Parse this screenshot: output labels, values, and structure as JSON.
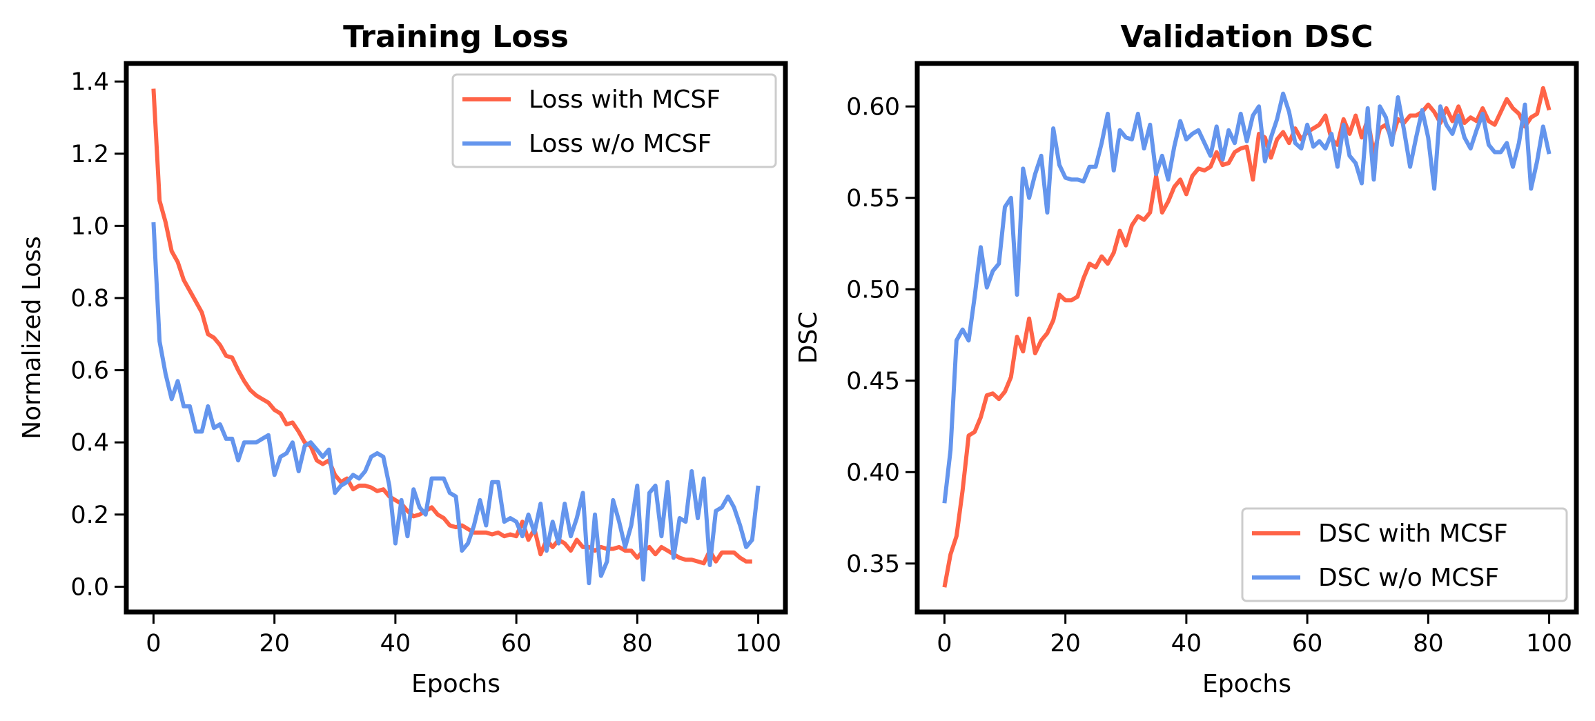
{
  "chart_data": [
    {
      "type": "line",
      "title": "Training Loss",
      "xlabel": "Epochs",
      "ylabel": "Normalized Loss",
      "xlim": [
        -4.5,
        104.5
      ],
      "ylim": [
        -0.07,
        1.45
      ],
      "xticks": [
        0,
        20,
        40,
        60,
        80,
        100
      ],
      "yticks": [
        0.0,
        0.2,
        0.4,
        0.6,
        0.8,
        1.0,
        1.2,
        1.4
      ],
      "xtick_labels": [
        "0",
        "20",
        "40",
        "60",
        "80",
        "100"
      ],
      "ytick_labels": [
        "0.0",
        "0.2",
        "0.4",
        "0.6",
        "0.8",
        "1.0",
        "1.2",
        "1.4"
      ],
      "grid": false,
      "legend_position": "upper right",
      "series": [
        {
          "name": "Loss with MCSF",
          "color": "#FF6347",
          "values": [
            1.38,
            1.07,
            1.01,
            0.93,
            0.9,
            0.85,
            0.82,
            0.79,
            0.76,
            0.7,
            0.69,
            0.67,
            0.64,
            0.635,
            0.6,
            0.57,
            0.545,
            0.53,
            0.52,
            0.51,
            0.49,
            0.48,
            0.45,
            0.455,
            0.43,
            0.4,
            0.39,
            0.35,
            0.34,
            0.35,
            0.31,
            0.29,
            0.3,
            0.27,
            0.28,
            0.28,
            0.275,
            0.265,
            0.27,
            0.25,
            0.24,
            0.23,
            0.21,
            0.195,
            0.2,
            0.21,
            0.22,
            0.2,
            0.19,
            0.17,
            0.165,
            0.17,
            0.16,
            0.15,
            0.15,
            0.15,
            0.145,
            0.15,
            0.14,
            0.145,
            0.14,
            0.18,
            0.13,
            0.16,
            0.09,
            0.13,
            0.11,
            0.13,
            0.12,
            0.1,
            0.13,
            0.11,
            0.11,
            0.1,
            0.11,
            0.105,
            0.105,
            0.11,
            0.1,
            0.1,
            0.08,
            0.1,
            0.11,
            0.09,
            0.11,
            0.1,
            0.09,
            0.08,
            0.075,
            0.075,
            0.07,
            0.065,
            0.1,
            0.07,
            0.095,
            0.095,
            0.095,
            0.08,
            0.07,
            0.07
          ]
        },
        {
          "name": "Loss w/o MCSF",
          "color": "#6495ED",
          "values": [
            1.01,
            0.68,
            0.59,
            0.52,
            0.57,
            0.5,
            0.5,
            0.43,
            0.43,
            0.5,
            0.44,
            0.45,
            0.41,
            0.41,
            0.35,
            0.4,
            0.4,
            0.4,
            0.41,
            0.42,
            0.31,
            0.36,
            0.37,
            0.4,
            0.32,
            0.39,
            0.4,
            0.38,
            0.36,
            0.38,
            0.26,
            0.28,
            0.29,
            0.31,
            0.3,
            0.32,
            0.36,
            0.37,
            0.36,
            0.28,
            0.12,
            0.24,
            0.14,
            0.27,
            0.22,
            0.2,
            0.3,
            0.3,
            0.3,
            0.26,
            0.25,
            0.1,
            0.12,
            0.17,
            0.24,
            0.17,
            0.29,
            0.29,
            0.18,
            0.19,
            0.18,
            0.14,
            0.2,
            0.15,
            0.23,
            0.1,
            0.18,
            0.12,
            0.23,
            0.14,
            0.19,
            0.26,
            0.01,
            0.2,
            0.03,
            0.07,
            0.24,
            0.18,
            0.11,
            0.17,
            0.28,
            0.02,
            0.26,
            0.28,
            0.14,
            0.29,
            0.08,
            0.19,
            0.18,
            0.32,
            0.19,
            0.3,
            0.06,
            0.21,
            0.22,
            0.25,
            0.22,
            0.17,
            0.11,
            0.13,
            0.28
          ]
        }
      ]
    },
    {
      "type": "line",
      "title": "Validation DSC",
      "xlabel": "Epochs",
      "ylabel": "DSC",
      "xlim": [
        -4.5,
        104.5
      ],
      "ylim": [
        0.3235,
        0.6235
      ],
      "xticks": [
        0,
        20,
        40,
        60,
        80,
        100
      ],
      "yticks": [
        0.35,
        0.4,
        0.45,
        0.5,
        0.55,
        0.6
      ],
      "xtick_labels": [
        "0",
        "20",
        "40",
        "60",
        "80",
        "100"
      ],
      "ytick_labels": [
        "0.35",
        "0.40",
        "0.45",
        "0.50",
        "0.55",
        "0.60"
      ],
      "grid": false,
      "legend_position": "lower right",
      "series": [
        {
          "name": "DSC with MCSF",
          "color": "#FF6347",
          "values": [
            0.337,
            0.355,
            0.365,
            0.39,
            0.42,
            0.422,
            0.43,
            0.442,
            0.443,
            0.44,
            0.444,
            0.452,
            0.474,
            0.466,
            0.484,
            0.465,
            0.472,
            0.476,
            0.483,
            0.497,
            0.494,
            0.494,
            0.496,
            0.506,
            0.514,
            0.512,
            0.518,
            0.514,
            0.52,
            0.532,
            0.524,
            0.535,
            0.54,
            0.538,
            0.542,
            0.562,
            0.542,
            0.548,
            0.556,
            0.56,
            0.552,
            0.562,
            0.566,
            0.565,
            0.567,
            0.575,
            0.568,
            0.569,
            0.575,
            0.577,
            0.578,
            0.56,
            0.585,
            0.583,
            0.572,
            0.582,
            0.586,
            0.58,
            0.588,
            0.582,
            0.586,
            0.588,
            0.59,
            0.595,
            0.582,
            0.579,
            0.593,
            0.585,
            0.595,
            0.583,
            0.593,
            0.574,
            0.588,
            0.59,
            0.582,
            0.593,
            0.591,
            0.595,
            0.595,
            0.597,
            0.601,
            0.597,
            0.591,
            0.599,
            0.592,
            0.6,
            0.591,
            0.594,
            0.592,
            0.599,
            0.592,
            0.59,
            0.597,
            0.604,
            0.599,
            0.596,
            0.589,
            0.594,
            0.596,
            0.61,
            0.598
          ]
        },
        {
          "name": "DSC w/o MCSF",
          "color": "#6495ED",
          "values": [
            0.383,
            0.412,
            0.472,
            0.478,
            0.472,
            0.496,
            0.523,
            0.501,
            0.51,
            0.514,
            0.545,
            0.55,
            0.497,
            0.566,
            0.55,
            0.563,
            0.573,
            0.542,
            0.588,
            0.568,
            0.561,
            0.56,
            0.56,
            0.559,
            0.567,
            0.567,
            0.58,
            0.596,
            0.565,
            0.587,
            0.583,
            0.582,
            0.596,
            0.577,
            0.59,
            0.563,
            0.573,
            0.56,
            0.578,
            0.592,
            0.582,
            0.585,
            0.587,
            0.58,
            0.573,
            0.589,
            0.571,
            0.587,
            0.58,
            0.596,
            0.581,
            0.595,
            0.6,
            0.57,
            0.583,
            0.593,
            0.607,
            0.597,
            0.58,
            0.577,
            0.59,
            0.578,
            0.581,
            0.577,
            0.585,
            0.567,
            0.59,
            0.573,
            0.569,
            0.558,
            0.599,
            0.56,
            0.6,
            0.594,
            0.579,
            0.605,
            0.587,
            0.567,
            0.583,
            0.598,
            0.583,
            0.555,
            0.6,
            0.59,
            0.585,
            0.595,
            0.583,
            0.577,
            0.587,
            0.596,
            0.579,
            0.575,
            0.575,
            0.58,
            0.567,
            0.58,
            0.601,
            0.555,
            0.57,
            0.589,
            0.574
          ]
        }
      ]
    }
  ]
}
